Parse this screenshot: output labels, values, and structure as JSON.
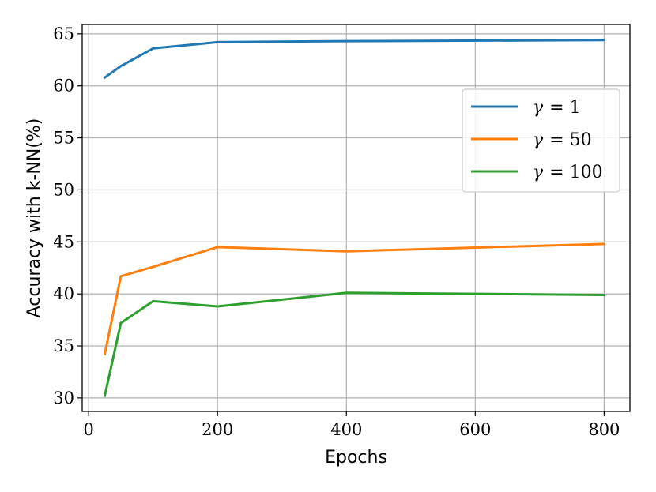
{
  "chart_data": {
    "type": "line",
    "xlabel": "Epochs",
    "ylabel": "Accuracy with k-NN(%)",
    "xlim": [
      -10,
      840
    ],
    "ylim": [
      28.7,
      65.9
    ],
    "xticks": [
      0,
      200,
      400,
      600,
      800
    ],
    "yticks": [
      30,
      35,
      40,
      45,
      50,
      55,
      60,
      65
    ],
    "grid": true,
    "legend_position": "upper-right",
    "series": [
      {
        "name": "γ = 1",
        "legend_symbol": "γ",
        "legend_value": "= 1",
        "color": "#1f77b4",
        "x": [
          25,
          50,
          100,
          200,
          400,
          800
        ],
        "y": [
          60.8,
          61.9,
          63.6,
          64.2,
          64.3,
          64.4
        ]
      },
      {
        "name": "γ = 50",
        "legend_symbol": "γ",
        "legend_value": "= 50",
        "color": "#ff7f0e",
        "x": [
          25,
          50,
          100,
          200,
          400,
          800
        ],
        "y": [
          34.2,
          41.7,
          42.6,
          44.5,
          44.1,
          44.8
        ]
      },
      {
        "name": "γ = 100",
        "legend_symbol": "γ",
        "legend_value": "= 100",
        "color": "#2ca02c",
        "x": [
          25,
          50,
          100,
          200,
          400,
          800
        ],
        "y": [
          30.2,
          37.2,
          39.3,
          38.8,
          40.1,
          39.9
        ]
      }
    ]
  }
}
